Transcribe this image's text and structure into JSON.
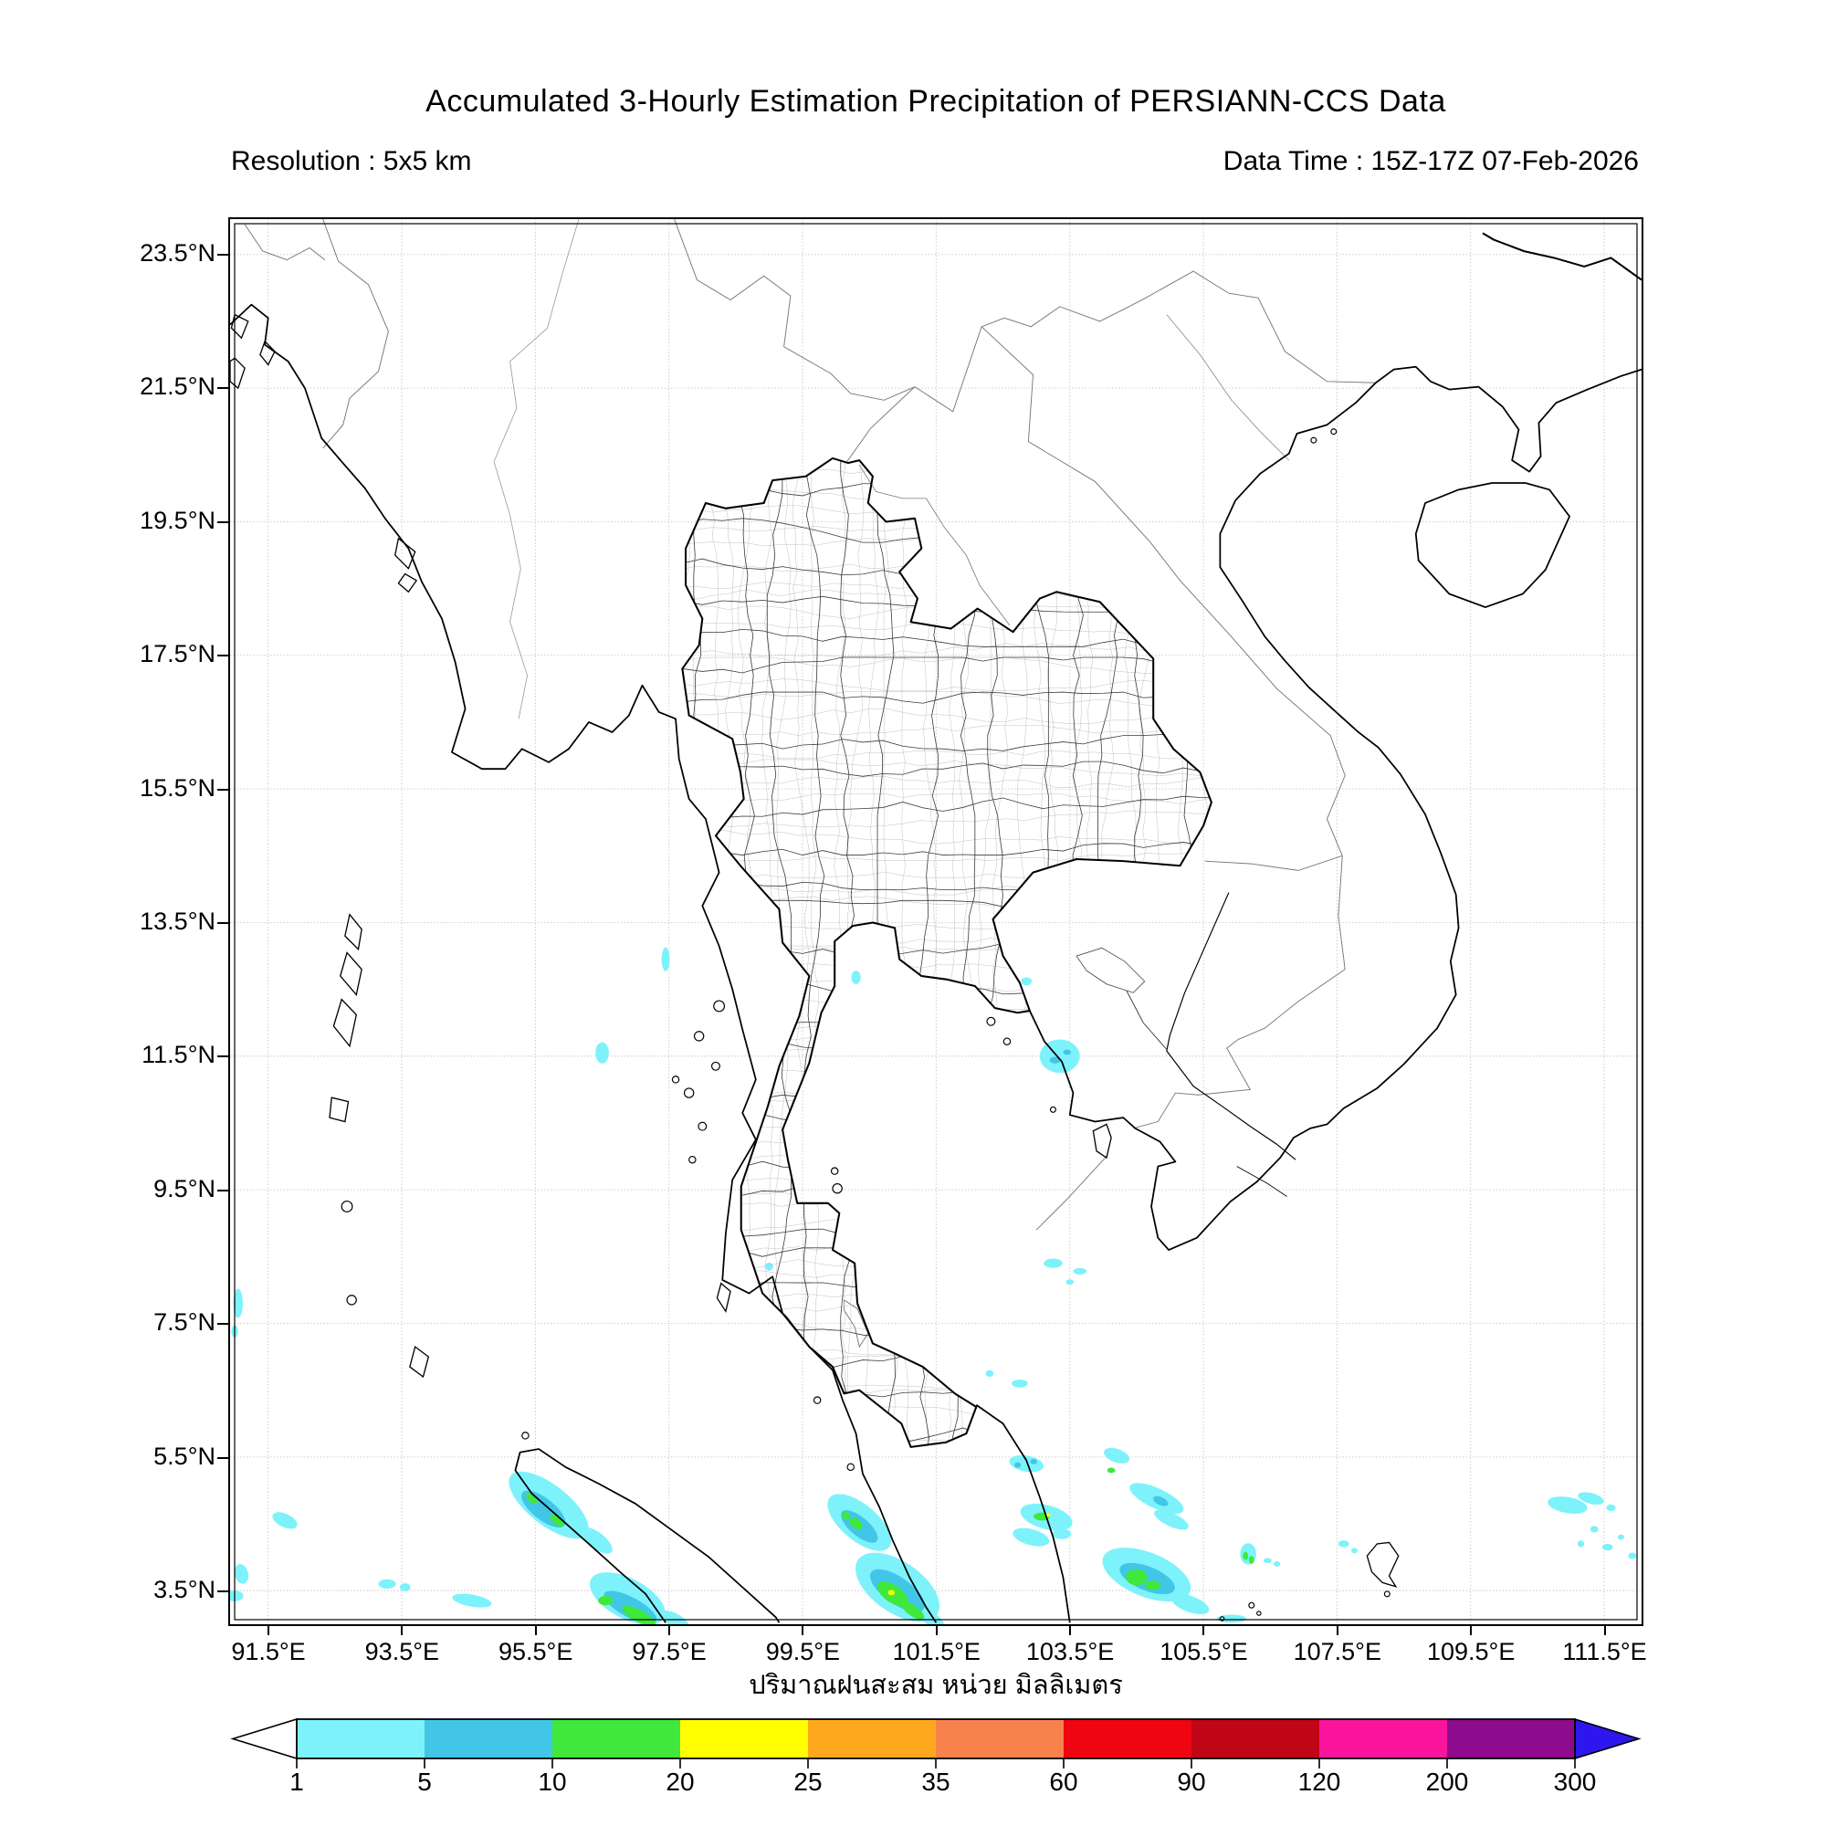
{
  "header": {
    "title": "Accumulated 3-Hourly Estimation Precipitation of PERSIANN-CCS Data",
    "resolution_label": "Resolution : 5x5 km",
    "data_time_label": "Data Time : 15Z-17Z 07-Feb-2026"
  },
  "map_axes": {
    "x_ticks": [
      "91.5°E",
      "93.5°E",
      "95.5°E",
      "97.5°E",
      "99.5°E",
      "101.5°E",
      "103.5°E",
      "105.5°E",
      "107.5°E",
      "109.5°E",
      "111.5°E"
    ],
    "y_ticks": [
      "23.5°N",
      "21.5°N",
      "19.5°N",
      "17.5°N",
      "15.5°N",
      "13.5°N",
      "11.5°N",
      "9.5°N",
      "7.5°N",
      "5.5°N",
      "3.5°N"
    ],
    "x_axis_label_thai": "ปริมาณฝนสะสม หน่วย มิลลิเมตร"
  },
  "legend": {
    "tick_labels": [
      "1",
      "5",
      "10",
      "20",
      "25",
      "35",
      "60",
      "90",
      "120",
      "200",
      "300"
    ],
    "segment_colors": [
      "#7df2fb",
      "#41c6e8",
      "#3fe83a",
      "#ffff00",
      "#ffa81e",
      "#f8824c",
      "#ee0510",
      "#c00517",
      "#f9149b",
      "#8e0b8e"
    ],
    "underflow_color": "#ffffff",
    "overflow_color": "#2e16ee"
  },
  "map_meta": {
    "grid_color": "#cccccc",
    "coast_color": "#000000",
    "country_border_color": "#787878",
    "province_color": "#3b3b3b",
    "district_color": "#b7b7b7"
  }
}
